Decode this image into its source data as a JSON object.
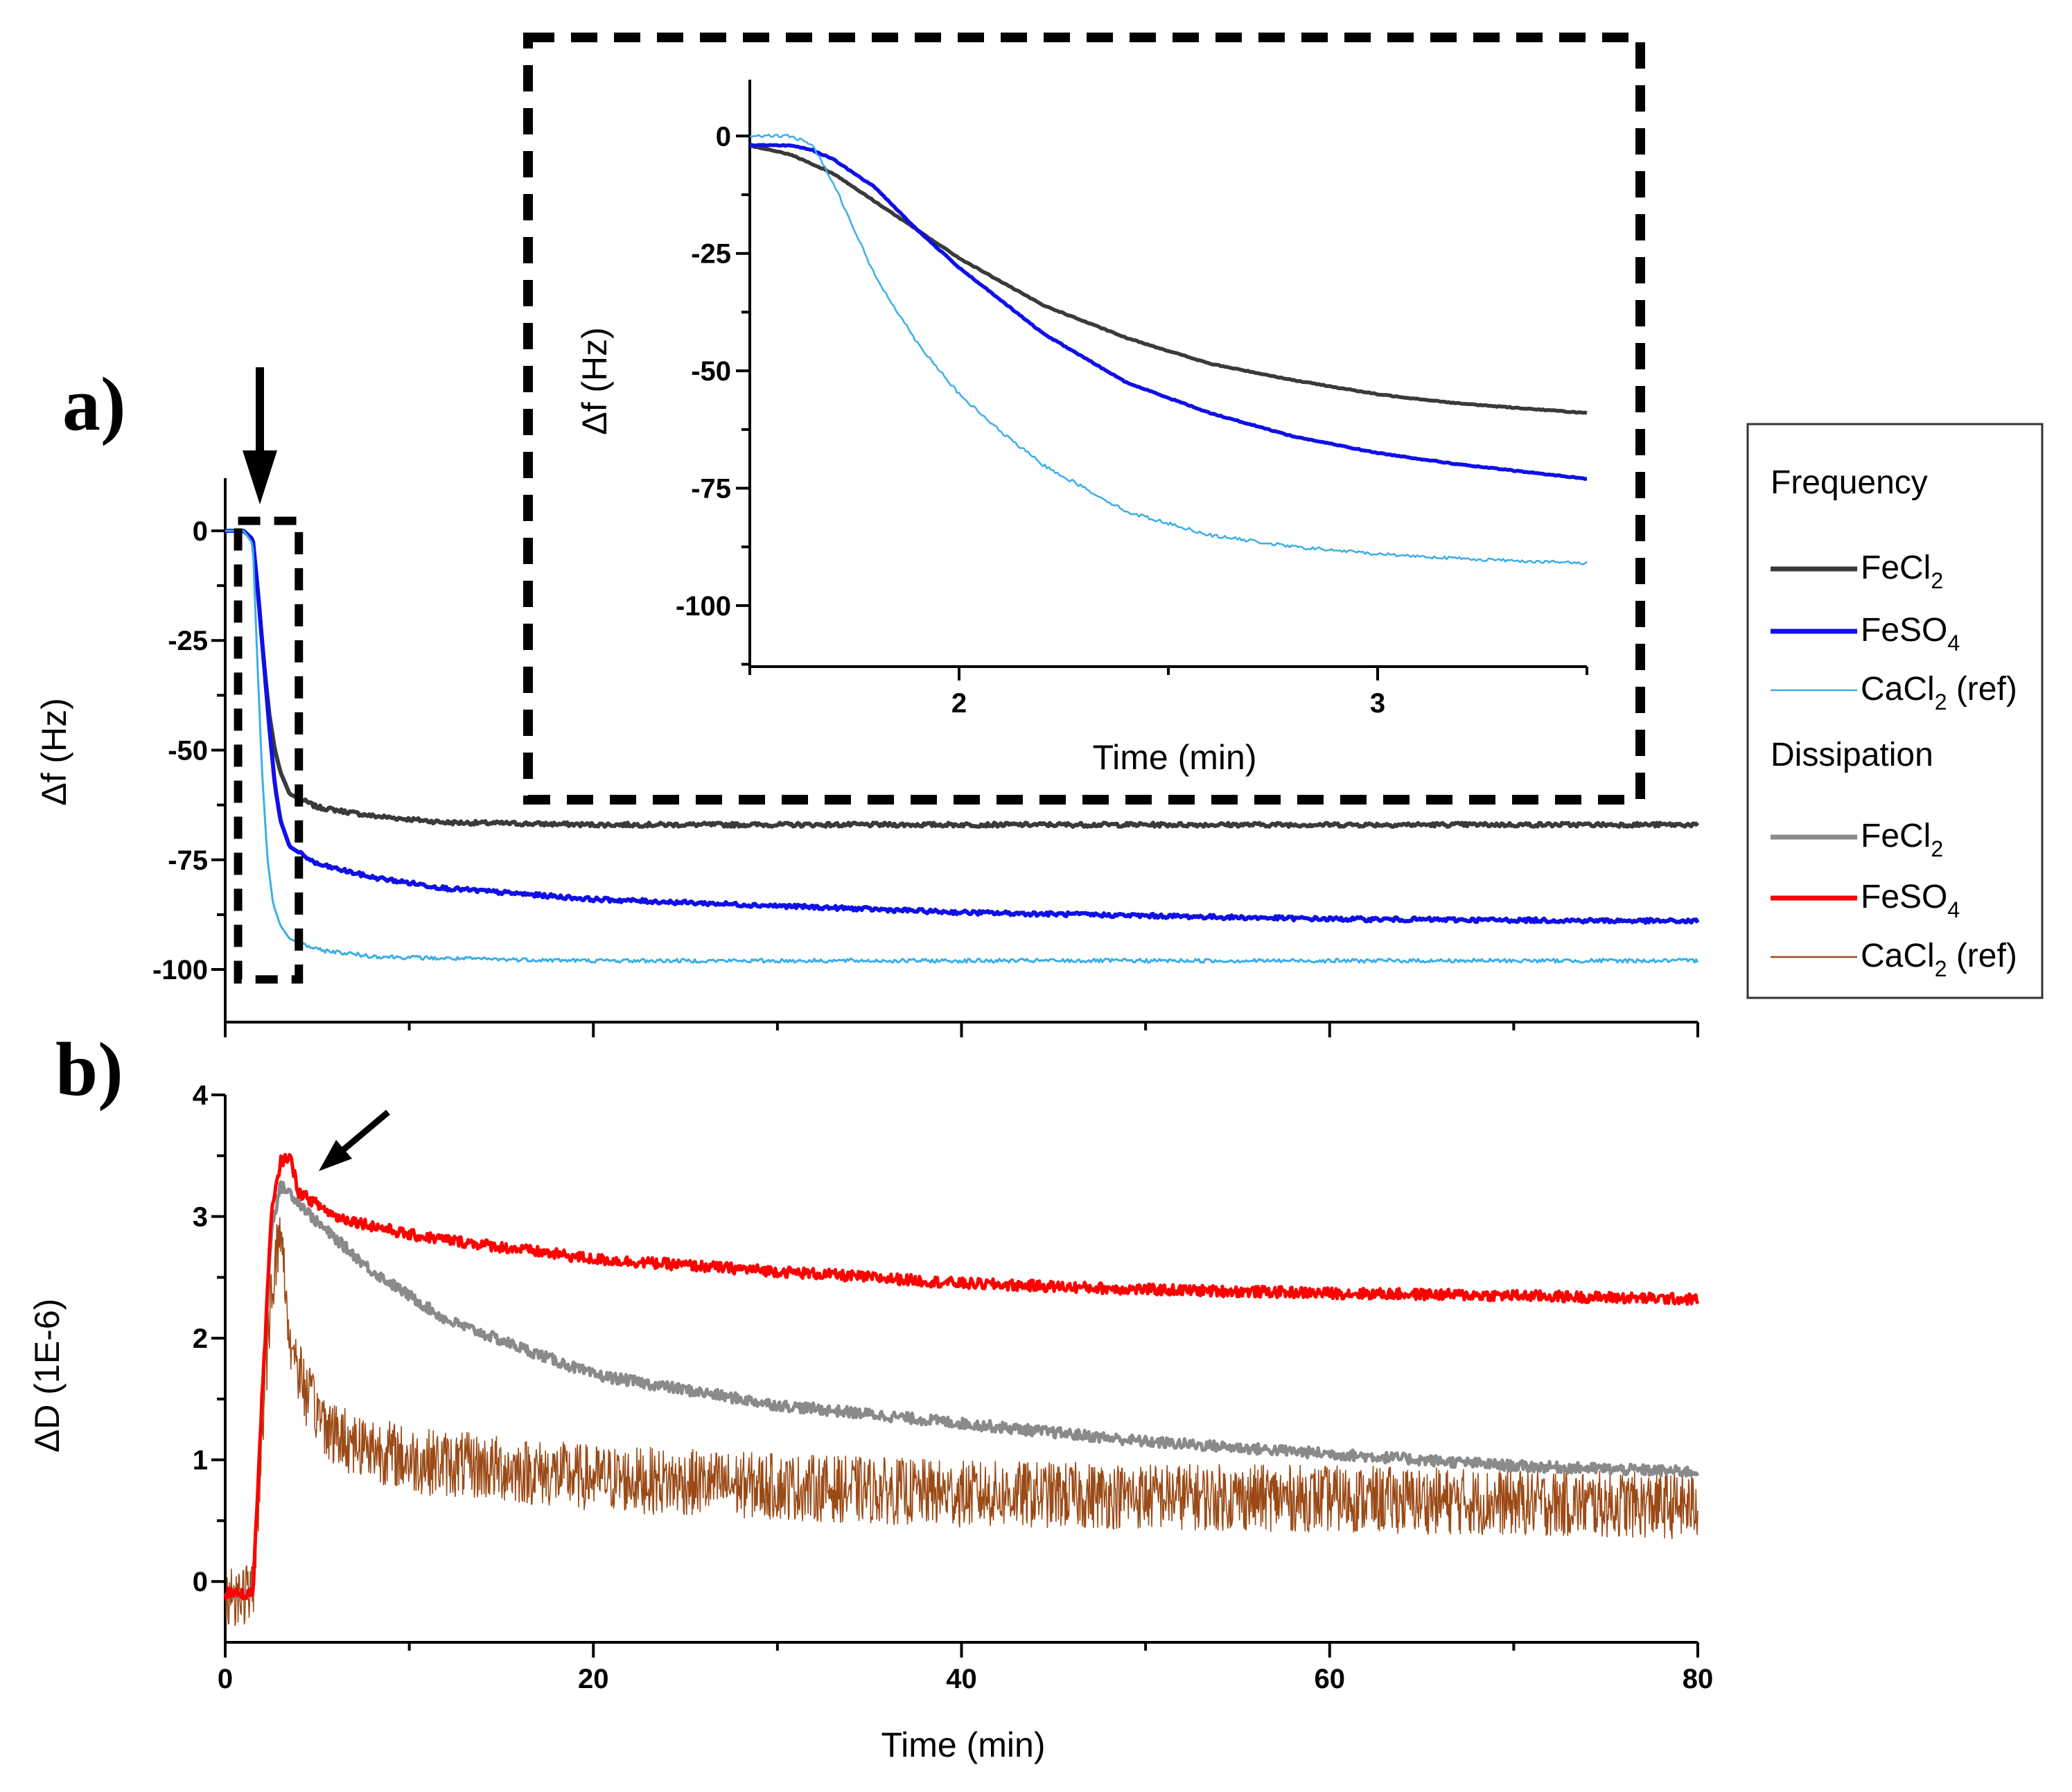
{
  "chart_data": [
    {
      "id": "a",
      "panel_label": "a)",
      "type": "line",
      "title": "",
      "xlabel": "",
      "ylabel": "Δf (Hz)",
      "xlim": [
        0,
        80
      ],
      "ylim": [
        -112,
        12
      ],
      "yticks": [
        0,
        -25,
        -50,
        -75,
        -100
      ],
      "grid": false,
      "legend_group": "Frequency",
      "series": [
        {
          "name": "FeCl2",
          "color": "#3a3a3a",
          "x": [
            0,
            1,
            1.5,
            1.8,
            2.1,
            2.4,
            2.7,
            3,
            3.5,
            5,
            8,
            12,
            20,
            40,
            60,
            80
          ],
          "y": [
            0,
            0,
            -2,
            -15,
            -30,
            -42,
            -50,
            -55,
            -60,
            -63,
            -65,
            -66.5,
            -67,
            -67,
            -67,
            -67
          ]
        },
        {
          "name": "FeSO4",
          "color": "#1010e6",
          "x": [
            0,
            1,
            1.5,
            1.8,
            2.1,
            2.4,
            2.7,
            3,
            3.5,
            5,
            8,
            12,
            20,
            40,
            60,
            80
          ],
          "y": [
            0,
            0,
            -2,
            -15,
            -30,
            -45,
            -58,
            -66,
            -72,
            -76,
            -79,
            -81.5,
            -84,
            -87,
            -88.5,
            -89
          ]
        },
        {
          "name": "CaCl2 (ref)",
          "color": "#3aaee8",
          "x": [
            0,
            1,
            1.5,
            1.7,
            2,
            2.3,
            2.6,
            3,
            3.5,
            5,
            8,
            12,
            20,
            40,
            60,
            80
          ],
          "y": [
            0,
            0,
            -3,
            -25,
            -55,
            -75,
            -85,
            -90,
            -93,
            -95.5,
            -97,
            -97.5,
            -98,
            -98,
            -98,
            -98
          ]
        }
      ],
      "annotations": [
        {
          "type": "arrow",
          "x": 1.8,
          "y": 0
        },
        {
          "type": "dashed-box",
          "x_range": [
            1,
            3.7
          ],
          "y_range": [
            -101,
            1
          ]
        }
      ]
    },
    {
      "id": "inset",
      "type": "line",
      "title": "",
      "xlabel": "Time (min)",
      "ylabel": "Δf (Hz)",
      "xlim": [
        1.5,
        3.5
      ],
      "ylim": [
        -113,
        12
      ],
      "xticks": [
        2,
        3
      ],
      "yticks": [
        0,
        -25,
        -50,
        -75,
        -100
      ],
      "grid": false,
      "series": [
        {
          "name": "FeCl2",
          "color": "#3a3a3a",
          "x": [
            1.5,
            1.6,
            1.7,
            1.8,
            1.9,
            2.0,
            2.1,
            2.2,
            2.4,
            2.6,
            2.8,
            3.0,
            3.2,
            3.5
          ],
          "y": [
            -2,
            -4,
            -8,
            -14,
            -20,
            -26,
            -31,
            -36,
            -43,
            -48.5,
            -52,
            -55,
            -57,
            -59
          ]
        },
        {
          "name": "FeSO4",
          "color": "#1010e6",
          "x": [
            1.5,
            1.6,
            1.65,
            1.7,
            1.8,
            1.9,
            2.0,
            2.1,
            2.2,
            2.4,
            2.6,
            2.8,
            3.0,
            3.2,
            3.5
          ],
          "y": [
            -2,
            -2,
            -3,
            -5,
            -11,
            -20,
            -28,
            -35,
            -42,
            -52.5,
            -59,
            -64,
            -67.5,
            -70,
            -73
          ]
        },
        {
          "name": "CaCl2 (ref)",
          "color": "#3aaee8",
          "x": [
            1.5,
            1.6,
            1.65,
            1.7,
            1.75,
            1.8,
            1.9,
            2.0,
            2.1,
            2.2,
            2.4,
            2.6,
            2.8,
            3.0,
            3.2,
            3.5
          ],
          "y": [
            0,
            0,
            -2,
            -10,
            -20,
            -30,
            -44,
            -55,
            -63,
            -70,
            -80,
            -85,
            -87.5,
            -89,
            -90,
            -91
          ]
        }
      ]
    },
    {
      "id": "b",
      "panel_label": "b)",
      "type": "line",
      "title": "",
      "xlabel": "Time (min)",
      "ylabel": "ΔD (1E-6)",
      "xlim": [
        0,
        80
      ],
      "ylim": [
        -0.5,
        4.0
      ],
      "xticks": [
        0,
        20,
        40,
        60,
        80
      ],
      "yticks": [
        0,
        1,
        2,
        3,
        4
      ],
      "grid": false,
      "legend_group": "Dissipation",
      "series": [
        {
          "name": "FeCl2",
          "color": "#8a8a8a",
          "x": [
            0,
            1.5,
            2,
            2.5,
            3,
            3.5,
            5,
            8,
            12,
            20,
            30,
            40,
            50,
            60,
            70,
            80
          ],
          "y": [
            -0.1,
            -0.1,
            1.5,
            2.9,
            3.25,
            3.2,
            2.95,
            2.55,
            2.15,
            1.7,
            1.45,
            1.3,
            1.15,
            1.05,
            0.95,
            0.9
          ]
        },
        {
          "name": "FeSO4",
          "color": "#ff0000",
          "x": [
            0,
            1.5,
            2,
            2.5,
            3,
            3.5,
            4,
            6,
            10,
            20,
            30,
            40,
            50,
            60,
            70,
            80
          ],
          "y": [
            -0.1,
            -0.1,
            1.5,
            3.0,
            3.45,
            3.5,
            3.2,
            3.0,
            2.85,
            2.65,
            2.55,
            2.45,
            2.4,
            2.37,
            2.35,
            2.32
          ]
        },
        {
          "name": "CaCl2 (ref)",
          "color": "#9b4a16",
          "x": [
            0,
            1.5,
            2,
            2.5,
            3,
            3.5,
            4.5,
            6,
            10,
            20,
            30,
            40,
            60,
            80
          ],
          "y": [
            -0.1,
            -0.1,
            1.2,
            2.4,
            2.9,
            2.0,
            1.5,
            1.2,
            1.0,
            0.85,
            0.78,
            0.72,
            0.68,
            0.62
          ]
        }
      ],
      "annotations": [
        {
          "type": "arrow",
          "x": 3.5,
          "y": 3.6
        }
      ]
    }
  ],
  "legend": {
    "frequency_heading": "Frequency",
    "dissipation_heading": "Dissipation",
    "items": [
      {
        "base": "FeCl",
        "sub": "2",
        "suffix": "",
        "color": "#3a3a3a",
        "thick": true
      },
      {
        "base": "FeSO",
        "sub": "4",
        "suffix": "",
        "color": "#1010e6",
        "thick": true
      },
      {
        "base": "CaCl",
        "sub": "2",
        "suffix": " (ref)",
        "color": "#3aaee8",
        "thick": false
      },
      {
        "base": "FeCl",
        "sub": "2",
        "suffix": "",
        "color": "#8a8a8a",
        "thick": true
      },
      {
        "base": "FeSO",
        "sub": "4",
        "suffix": "",
        "color": "#ff0000",
        "thick": true
      },
      {
        "base": "CaCl",
        "sub": "2",
        "suffix": " (ref)",
        "color": "#9b4a16",
        "thick": false
      }
    ]
  }
}
